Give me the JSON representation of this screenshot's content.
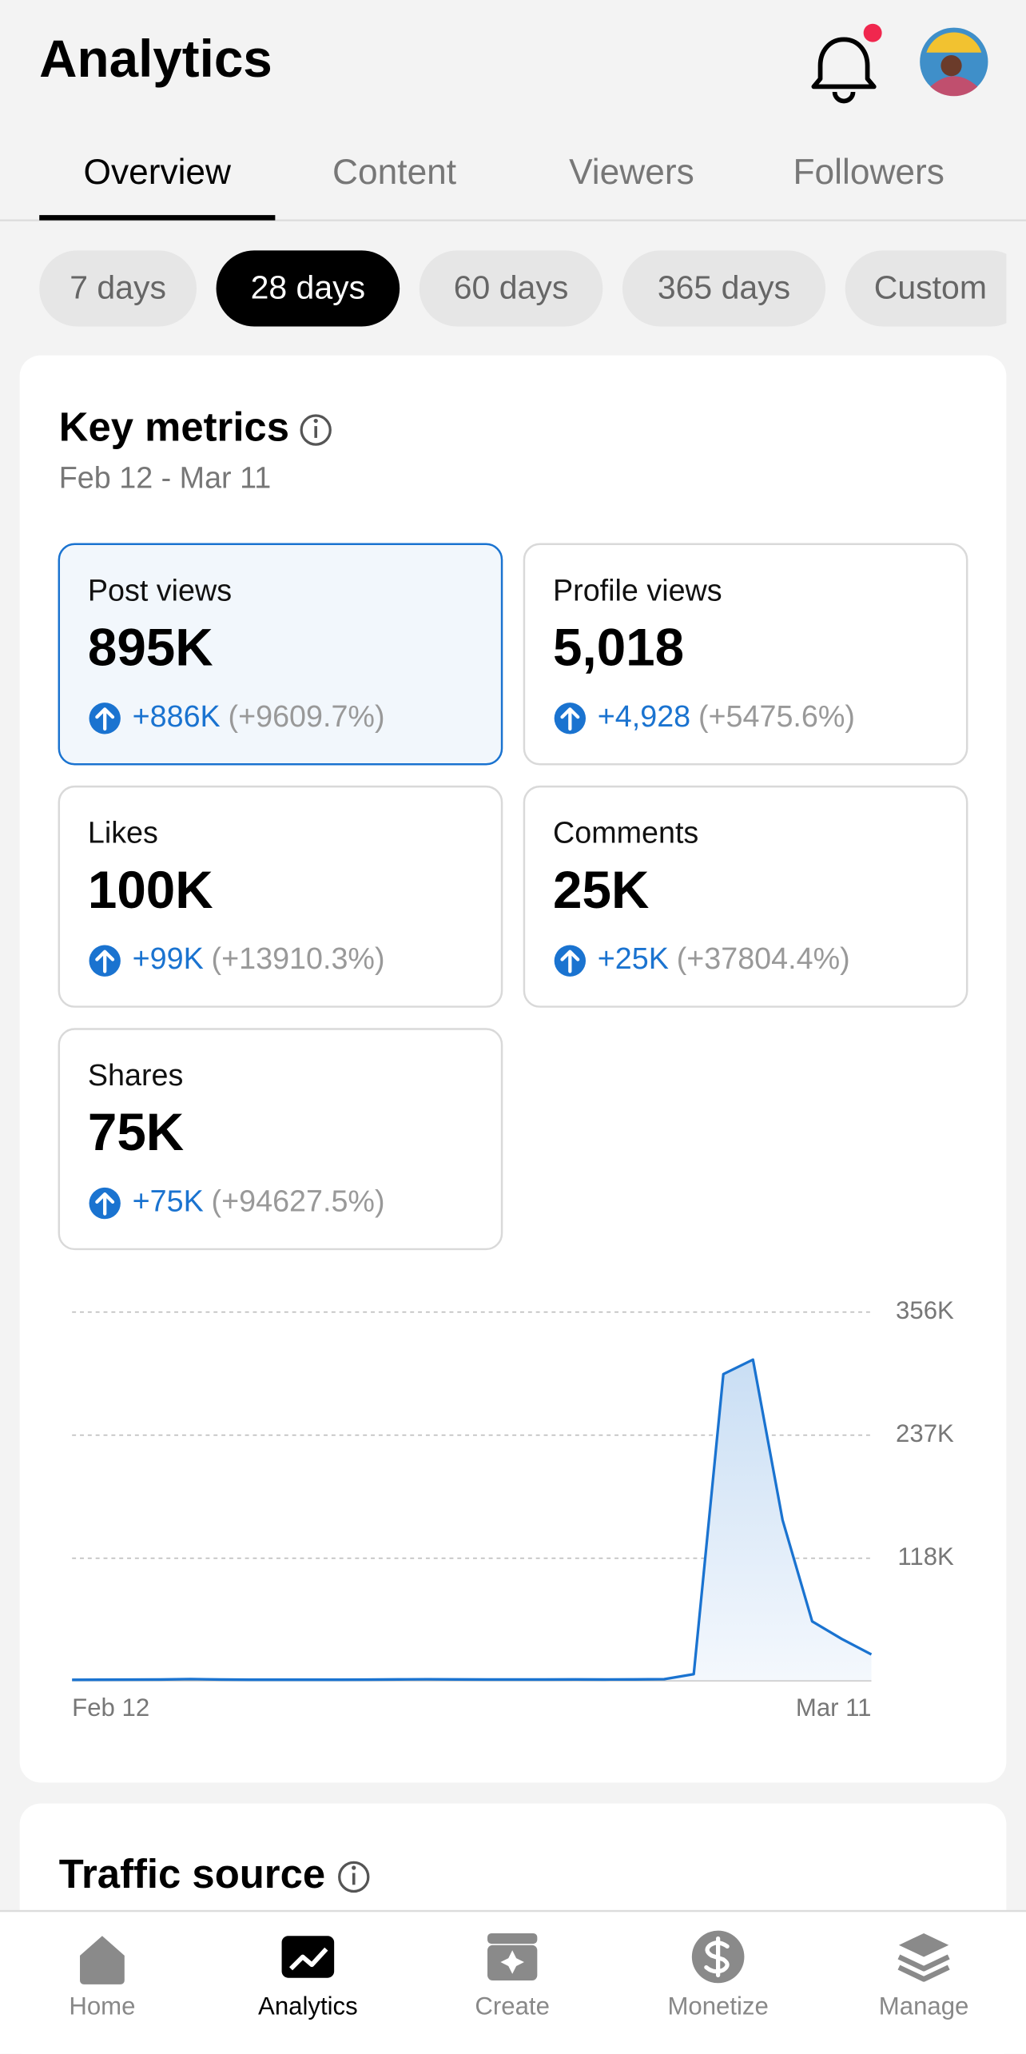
{
  "header": {
    "title": "Analytics"
  },
  "tabs": [
    "Overview",
    "Content",
    "Viewers",
    "Followers"
  ],
  "periods": [
    "7 days",
    "28 days",
    "60 days",
    "365 days",
    "Custom"
  ],
  "key_metrics": {
    "title": "Key metrics",
    "date_range": "Feb 12 - Mar 11",
    "metrics": [
      {
        "label": "Post views",
        "value": "895K",
        "change": "+886K",
        "percent": "(+9609.7%)"
      },
      {
        "label": "Profile views",
        "value": "5,018",
        "change": "+4,928",
        "percent": "(+5475.6%)"
      },
      {
        "label": "Likes",
        "value": "100K",
        "change": "+99K",
        "percent": "(+13910.3%)"
      },
      {
        "label": "Comments",
        "value": "25K",
        "change": "+25K",
        "percent": "(+37804.4%)"
      },
      {
        "label": "Shares",
        "value": "75K",
        "change": "+75K",
        "percent": "(+94627.5%)"
      }
    ]
  },
  "chart_data": {
    "type": "area",
    "color": "#1a73d0",
    "categories": [
      "Feb 12",
      null,
      null,
      null,
      null,
      null,
      null,
      null,
      null,
      null,
      null,
      null,
      null,
      null,
      null,
      null,
      null,
      null,
      null,
      null,
      null,
      null,
      null,
      null,
      null,
      null,
      null,
      "Mar 11"
    ],
    "values": [
      500,
      600,
      700,
      800,
      1200,
      800,
      600,
      600,
      600,
      600,
      700,
      900,
      1000,
      900,
      800,
      800,
      800,
      900,
      800,
      900,
      1100,
      6000,
      296000,
      310000,
      155000,
      57000,
      40000,
      25000
    ],
    "ylim": [
      0,
      356000
    ],
    "yticks": [
      {
        "value": 118000,
        "label": "118K"
      },
      {
        "value": 237000,
        "label": "237K"
      },
      {
        "value": 356000,
        "label": "356K"
      }
    ],
    "grid": true
  },
  "traffic_source": {
    "title": "Traffic source"
  },
  "nav": [
    "Home",
    "Analytics",
    "Create",
    "Monetize",
    "Manage"
  ]
}
